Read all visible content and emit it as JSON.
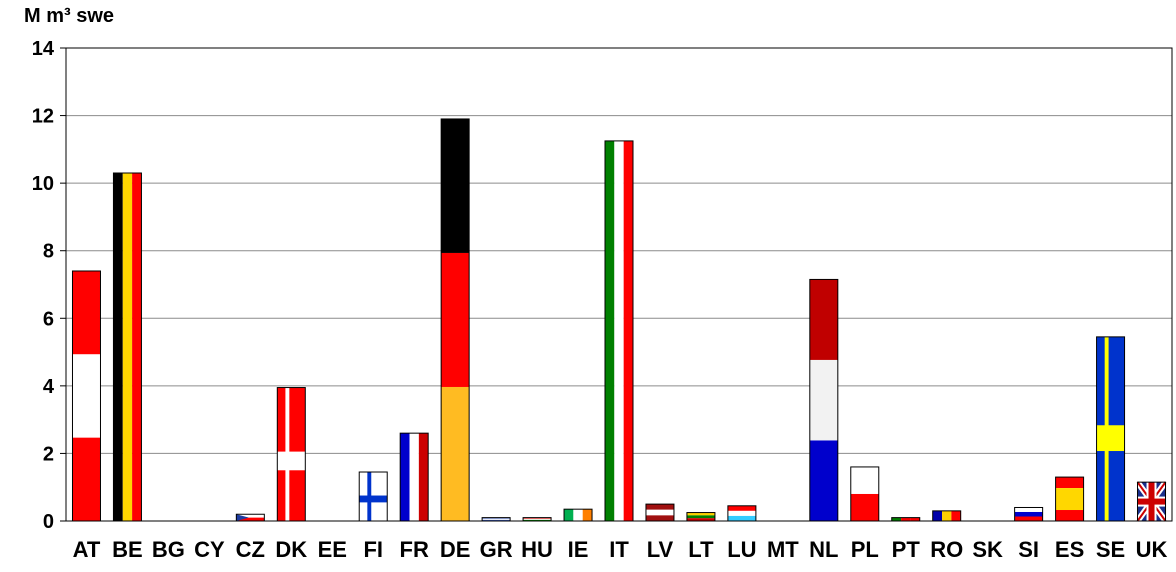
{
  "chart_data": {
    "type": "bar",
    "ylabel": "M m³ swe",
    "ylim": [
      0,
      14
    ],
    "yticks": [
      "0",
      "2",
      "4",
      "6",
      "8",
      "10",
      "12",
      "14"
    ],
    "grid": true,
    "categories": [
      "AT",
      "BE",
      "BG",
      "CY",
      "CZ",
      "DK",
      "EE",
      "FI",
      "FR",
      "DE",
      "GR",
      "HU",
      "IE",
      "IT",
      "LV",
      "LT",
      "LU",
      "MT",
      "NL",
      "PL",
      "PT",
      "RO",
      "SK",
      "SI",
      "ES",
      "SE",
      "UK"
    ],
    "values": [
      7.4,
      10.3,
      0,
      0,
      0.2,
      3.95,
      0,
      1.45,
      2.6,
      11.9,
      0.1,
      0.1,
      0.35,
      11.25,
      0.5,
      0.25,
      0.45,
      0,
      7.15,
      1.6,
      0.1,
      0.3,
      0,
      0.4,
      1.3,
      5.45,
      1.15
    ],
    "bar_style": "national-flag-pattern"
  }
}
